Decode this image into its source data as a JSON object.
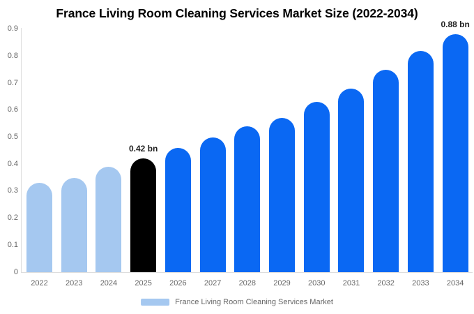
{
  "chart_data": {
    "type": "bar",
    "title": "France Living Room Cleaning Services Market Size (2022-2034)",
    "categories": [
      "2022",
      "2023",
      "2024",
      "2025",
      "2026",
      "2027",
      "2028",
      "2029",
      "2030",
      "2031",
      "2032",
      "2033",
      "2034"
    ],
    "values": [
      0.33,
      0.35,
      0.39,
      0.42,
      0.46,
      0.5,
      0.54,
      0.57,
      0.63,
      0.68,
      0.75,
      0.82,
      0.88
    ],
    "unit": "bn",
    "xlabel": "",
    "ylabel": "",
    "ylim": [
      0,
      0.9
    ],
    "ytick_labels": [
      "0",
      "0.1",
      "0.2",
      "0.3",
      "0.4",
      "0.5",
      "0.6",
      "0.7",
      "0.8",
      "0.9"
    ],
    "grid": false,
    "legend_position": "bottom",
    "colors": {
      "historical": "#A5C8F0",
      "highlight": "#000000",
      "forecast": "#0A68F3",
      "axis_line": "#dddddd",
      "tick_text": "#666666",
      "data_label_text": "#222222"
    },
    "bar_color_roles": [
      "historical",
      "historical",
      "historical",
      "highlight",
      "forecast",
      "forecast",
      "forecast",
      "forecast",
      "forecast",
      "forecast",
      "forecast",
      "forecast",
      "forecast"
    ],
    "annotations": [
      {
        "category": "2025",
        "text": "0.42 bn"
      },
      {
        "category": "2034",
        "text": "0.88 bn"
      }
    ],
    "legend": [
      {
        "label": "France Living Room Cleaning Services Market",
        "color_role": "historical"
      }
    ]
  }
}
